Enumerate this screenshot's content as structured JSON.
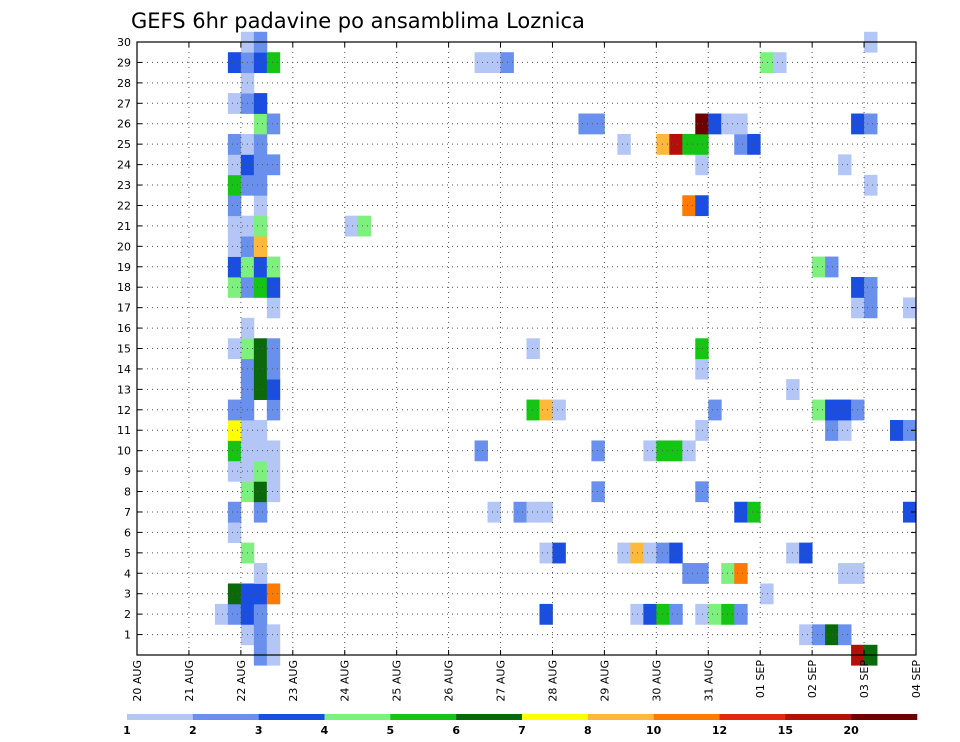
{
  "chart_data": {
    "type": "heatmap",
    "title": "GEFS 6hr padavine po ansamblima Loznica",
    "xlabel": "",
    "ylabel": "",
    "x_tick_labels": [
      "20 AUG",
      "21 AUG",
      "22 AUG",
      "23 AUG",
      "24 AUG",
      "25 AUG",
      "26 AUG",
      "27 AUG",
      "28 AUG",
      "29 AUG",
      "30 AUG",
      "31 AUG",
      "01 SEP",
      "02 SEP",
      "03 SEP",
      "04 SEP"
    ],
    "x_range_steps": [
      0,
      60
    ],
    "y_tick_labels": [
      "1",
      "2",
      "3",
      "4",
      "5",
      "6",
      "7",
      "8",
      "9",
      "10",
      "11",
      "12",
      "13",
      "14",
      "15",
      "16",
      "17",
      "18",
      "19",
      "20",
      "21",
      "22",
      "23",
      "24",
      "25",
      "26",
      "27",
      "28",
      "29",
      "30"
    ],
    "y_range_members": [
      0,
      30
    ],
    "grid": true,
    "legend_placement": "bottom",
    "legend": {
      "labels": [
        "1",
        "2",
        "3",
        "4",
        "5",
        "6",
        "7",
        "8",
        "10",
        "12",
        "15",
        "20"
      ],
      "colors": [
        "#b3c6f5",
        "#6a90ee",
        "#1a4ee0",
        "#7ef07e",
        "#16c416",
        "#0b680b",
        "#ffff00",
        "#ffb93a",
        "#ff7b00",
        "#e6270c",
        "#b50f0a",
        "#6e0000"
      ]
    },
    "cells": [
      [
        1,
        8,
        0
      ],
      [
        1,
        9,
        1
      ],
      [
        1,
        10,
        0
      ],
      [
        1,
        51,
        0
      ],
      [
        1,
        52,
        1
      ],
      [
        1,
        53,
        5
      ],
      [
        1,
        54,
        1
      ],
      [
        2,
        6,
        0
      ],
      [
        2,
        7,
        1
      ],
      [
        2,
        8,
        2
      ],
      [
        2,
        9,
        1
      ],
      [
        2,
        31,
        2
      ],
      [
        2,
        38,
        0
      ],
      [
        2,
        39,
        2
      ],
      [
        2,
        40,
        4
      ],
      [
        2,
        41,
        1
      ],
      [
        2,
        43,
        0
      ],
      [
        2,
        44,
        3
      ],
      [
        2,
        45,
        4
      ],
      [
        2,
        46,
        1
      ],
      [
        3,
        7,
        5
      ],
      [
        3,
        8,
        2
      ],
      [
        3,
        9,
        2
      ],
      [
        3,
        10,
        8
      ],
      [
        3,
        48,
        0
      ],
      [
        4,
        9,
        0
      ],
      [
        4,
        42,
        1
      ],
      [
        4,
        43,
        1
      ],
      [
        4,
        45,
        3
      ],
      [
        4,
        46,
        8
      ],
      [
        4,
        54,
        0
      ],
      [
        4,
        55,
        0
      ],
      [
        5,
        8,
        3
      ],
      [
        5,
        31,
        0
      ],
      [
        5,
        32,
        2
      ],
      [
        5,
        37,
        0
      ],
      [
        5,
        38,
        7
      ],
      [
        5,
        39,
        0
      ],
      [
        5,
        40,
        1
      ],
      [
        5,
        41,
        2
      ],
      [
        5,
        50,
        0
      ],
      [
        5,
        51,
        2
      ],
      [
        6,
        7,
        0
      ],
      [
        7,
        7,
        1
      ],
      [
        7,
        9,
        1
      ],
      [
        7,
        27,
        0
      ],
      [
        7,
        29,
        1
      ],
      [
        7,
        30,
        0
      ],
      [
        7,
        31,
        0
      ],
      [
        7,
        46,
        2
      ],
      [
        7,
        47,
        4
      ],
      [
        7,
        59,
        2
      ],
      [
        8,
        8,
        3
      ],
      [
        8,
        9,
        5
      ],
      [
        8,
        10,
        0
      ],
      [
        8,
        35,
        1
      ],
      [
        8,
        43,
        1
      ],
      [
        9,
        7,
        0
      ],
      [
        9,
        8,
        0
      ],
      [
        9,
        9,
        3
      ],
      [
        9,
        10,
        0
      ],
      [
        10,
        7,
        4
      ],
      [
        10,
        8,
        0
      ],
      [
        10,
        9,
        0
      ],
      [
        10,
        10,
        0
      ],
      [
        10,
        26,
        1
      ],
      [
        10,
        35,
        1
      ],
      [
        10,
        39,
        0
      ],
      [
        10,
        40,
        4
      ],
      [
        10,
        41,
        4
      ],
      [
        10,
        42,
        0
      ],
      [
        11,
        7,
        6
      ],
      [
        11,
        8,
        0
      ],
      [
        11,
        9,
        0
      ],
      [
        11,
        43,
        0
      ],
      [
        11,
        53,
        1
      ],
      [
        11,
        54,
        0
      ],
      [
        11,
        58,
        2
      ],
      [
        11,
        59,
        1
      ],
      [
        12,
        7,
        1
      ],
      [
        12,
        8,
        1
      ],
      [
        12,
        10,
        1
      ],
      [
        12,
        30,
        4
      ],
      [
        12,
        31,
        7
      ],
      [
        12,
        32,
        0
      ],
      [
        12,
        44,
        1
      ],
      [
        12,
        52,
        3
      ],
      [
        12,
        53,
        2
      ],
      [
        12,
        54,
        2
      ],
      [
        12,
        55,
        1
      ],
      [
        13,
        8,
        1
      ],
      [
        13,
        9,
        5
      ],
      [
        13,
        10,
        2
      ],
      [
        13,
        50,
        0
      ],
      [
        14,
        8,
        1
      ],
      [
        14,
        9,
        5
      ],
      [
        14,
        10,
        1
      ],
      [
        14,
        43,
        0
      ],
      [
        15,
        7,
        0
      ],
      [
        15,
        8,
        3
      ],
      [
        15,
        9,
        5
      ],
      [
        15,
        10,
        1
      ],
      [
        15,
        30,
        0
      ],
      [
        15,
        43,
        4
      ],
      [
        16,
        8,
        0
      ],
      [
        17,
        10,
        0
      ],
      [
        17,
        55,
        0
      ],
      [
        17,
        56,
        1
      ],
      [
        17,
        59,
        0
      ],
      [
        18,
        7,
        3
      ],
      [
        18,
        8,
        1
      ],
      [
        18,
        9,
        4
      ],
      [
        18,
        10,
        2
      ],
      [
        18,
        55,
        2
      ],
      [
        18,
        56,
        1
      ],
      [
        19,
        7,
        2
      ],
      [
        19,
        8,
        3
      ],
      [
        19,
        9,
        2
      ],
      [
        19,
        10,
        3
      ],
      [
        19,
        52,
        3
      ],
      [
        19,
        53,
        1
      ],
      [
        20,
        7,
        0
      ],
      [
        20,
        8,
        1
      ],
      [
        20,
        9,
        7
      ],
      [
        21,
        7,
        0
      ],
      [
        21,
        8,
        0
      ],
      [
        21,
        9,
        3
      ],
      [
        21,
        16,
        0
      ],
      [
        21,
        17,
        3
      ],
      [
        22,
        7,
        1
      ],
      [
        22,
        9,
        0
      ],
      [
        22,
        42,
        8
      ],
      [
        22,
        43,
        2
      ],
      [
        23,
        7,
        4
      ],
      [
        23,
        8,
        1
      ],
      [
        23,
        9,
        1
      ],
      [
        23,
        56,
        0
      ],
      [
        24,
        7,
        0
      ],
      [
        24,
        8,
        2
      ],
      [
        24,
        9,
        1
      ],
      [
        24,
        10,
        1
      ],
      [
        24,
        43,
        0
      ],
      [
        24,
        54,
        0
      ],
      [
        25,
        7,
        1
      ],
      [
        25,
        8,
        0
      ],
      [
        25,
        9,
        1
      ],
      [
        25,
        37,
        0
      ],
      [
        25,
        40,
        7
      ],
      [
        25,
        41,
        10
      ],
      [
        25,
        42,
        4
      ],
      [
        25,
        43,
        4
      ],
      [
        25,
        46,
        1
      ],
      [
        25,
        47,
        2
      ],
      [
        26,
        9,
        3
      ],
      [
        26,
        10,
        1
      ],
      [
        26,
        34,
        1
      ],
      [
        26,
        35,
        1
      ],
      [
        26,
        43,
        11
      ],
      [
        26,
        44,
        2
      ],
      [
        26,
        45,
        0
      ],
      [
        26,
        46,
        0
      ],
      [
        26,
        55,
        2
      ],
      [
        26,
        56,
        1
      ],
      [
        27,
        7,
        0
      ],
      [
        27,
        8,
        1
      ],
      [
        27,
        9,
        2
      ],
      [
        28,
        8,
        0
      ],
      [
        29,
        7,
        2
      ],
      [
        29,
        8,
        1
      ],
      [
        29,
        9,
        2
      ],
      [
        29,
        10,
        4
      ],
      [
        29,
        26,
        0
      ],
      [
        29,
        27,
        0
      ],
      [
        29,
        28,
        1
      ],
      [
        29,
        48,
        3
      ],
      [
        29,
        49,
        0
      ],
      [
        30,
        8,
        0
      ],
      [
        30,
        9,
        1
      ],
      [
        30,
        56,
        0
      ],
      [
        0,
        9,
        1
      ],
      [
        0,
        10,
        0
      ],
      [
        0,
        55,
        10
      ],
      [
        0,
        56,
        5
      ]
    ]
  }
}
